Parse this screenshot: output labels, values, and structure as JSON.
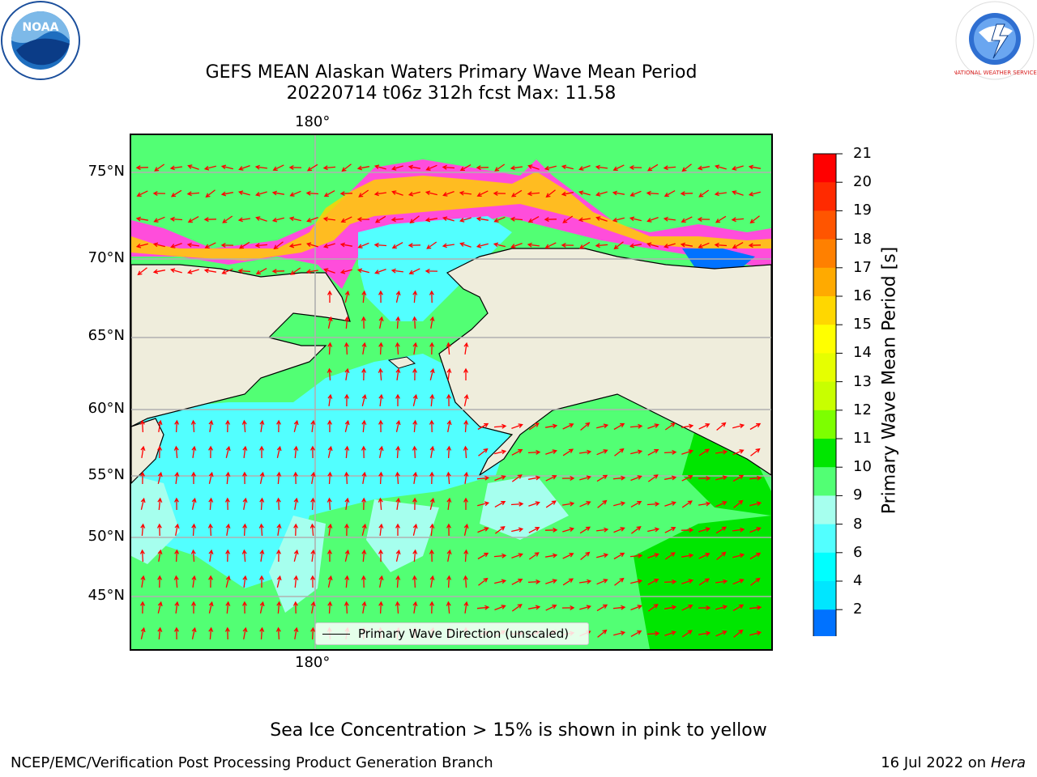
{
  "title_line1": "GEFS MEAN Alaskan Waters Primary Wave Mean Period",
  "title_line2": "20220714 t06z 312h fcst   Max: 11.58",
  "lon_label_top": "180°",
  "lon_label_bottom": "180°",
  "lat_labels": [
    "75°N",
    "70°N",
    "65°N",
    "60°N",
    "55°N",
    "50°N",
    "45°N"
  ],
  "colorbar": {
    "title": "Primary Wave Mean Period [s]",
    "ticks": [
      "21",
      "20",
      "19",
      "18",
      "17",
      "16",
      "15",
      "14",
      "13",
      "12",
      "11",
      "10",
      "9",
      "8",
      "6",
      "4",
      "2"
    ],
    "colors_top_to_bottom": [
      "#ff0000",
      "#ff2a00",
      "#ff5500",
      "#ff8000",
      "#ffaa00",
      "#ffd700",
      "#ffff00",
      "#e6ff00",
      "#c8ff00",
      "#7dff00",
      "#00e600",
      "#52ff74",
      "#a6ffee",
      "#52ffff",
      "#00ffff",
      "#00e6ff",
      "#0072ff"
    ],
    "extend_color": "#0000ff"
  },
  "legend_label": "Primary Wave Direction (unscaled)",
  "note": "Sea Ice Concentration > 15% is shown in pink to yellow",
  "footer_left": "NCEP/EMC/Verification Post Processing Product Generation Branch",
  "footer_right_prefix": "16 Jul 2022 on ",
  "footer_right_italic": "Hera",
  "logos": {
    "noaa_text": "NOAA",
    "nws_text": "NATIONAL WEATHER SERVICE"
  },
  "colors": {
    "land": "#efeddc",
    "arrow": "#ff0000",
    "sea_ice_pink": "#ff4ddb",
    "sea_ice_yellow": "#ffd000",
    "wave_cyan": "#52ffff",
    "wave_light": "#a6ffee",
    "wave_green": "#52ff74",
    "wave_bright_green": "#00e600"
  }
}
